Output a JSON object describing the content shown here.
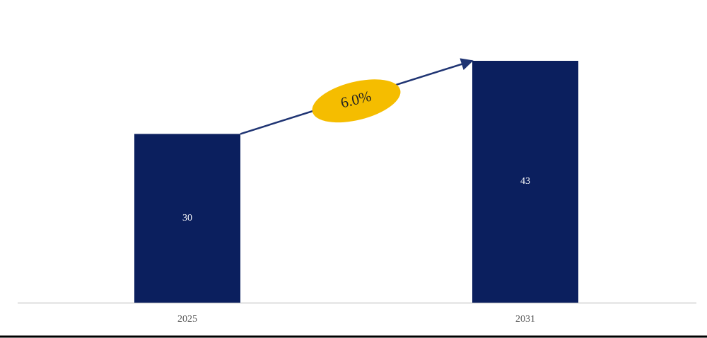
{
  "chart_data": {
    "type": "bar",
    "categories": [
      "2025",
      "2031"
    ],
    "values": [
      30,
      43
    ],
    "color": "#0b1f5e",
    "annotation": "6.0%",
    "annotation_color": "#f5bd00"
  }
}
